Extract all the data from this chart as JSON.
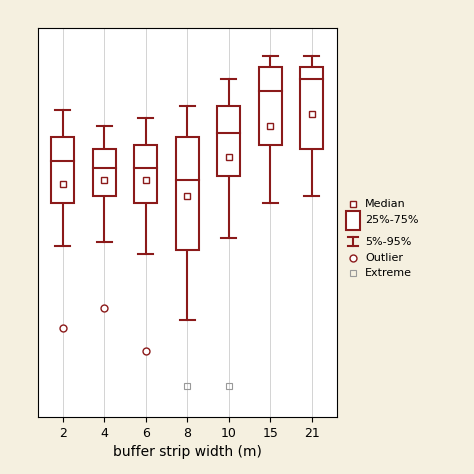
{
  "categories": [
    2,
    4,
    6,
    8,
    10,
    15,
    21
  ],
  "box_color": "#8B1A1A",
  "background_color": "#F5F0E0",
  "plot_bg_color": "#FFFFFF",
  "xlabel": "buffer strip width (m)",
  "grid_color": "#CCCCCC",
  "boxes": [
    {
      "q1": 0.55,
      "q3": 0.72,
      "median": 0.66,
      "mean": 0.6,
      "whisker_low": 0.44,
      "whisker_high": 0.79,
      "outliers": [
        0.23
      ],
      "extremes": []
    },
    {
      "q1": 0.57,
      "q3": 0.69,
      "median": 0.64,
      "mean": 0.61,
      "whisker_low": 0.45,
      "whisker_high": 0.75,
      "outliers": [
        0.28
      ],
      "extremes": []
    },
    {
      "q1": 0.55,
      "q3": 0.7,
      "median": 0.64,
      "mean": 0.61,
      "whisker_low": 0.42,
      "whisker_high": 0.77,
      "outliers": [
        0.17
      ],
      "extremes": []
    },
    {
      "q1": 0.43,
      "q3": 0.72,
      "median": 0.61,
      "mean": 0.57,
      "whisker_low": 0.25,
      "whisker_high": 0.8,
      "outliers": [],
      "extremes": [
        0.08
      ]
    },
    {
      "q1": 0.62,
      "q3": 0.8,
      "median": 0.73,
      "mean": 0.67,
      "whisker_low": 0.46,
      "whisker_high": 0.87,
      "outliers": [],
      "extremes": [
        0.08
      ]
    },
    {
      "q1": 0.7,
      "q3": 0.9,
      "median": 0.84,
      "mean": 0.75,
      "whisker_low": 0.55,
      "whisker_high": 0.93,
      "outliers": [],
      "extremes": []
    },
    {
      "q1": 0.69,
      "q3": 0.9,
      "median": 0.87,
      "mean": 0.78,
      "whisker_low": 0.57,
      "whisker_high": 0.93,
      "outliers": [],
      "extremes": []
    }
  ],
  "ylim": [
    0.0,
    1.0
  ],
  "figsize": [
    4.74,
    4.74
  ],
  "dpi": 100,
  "box_width": 0.55,
  "legend_items": [
    {
      "label": "Median",
      "type": "mean_marker"
    },
    {
      "label": "25%-75%",
      "type": "box"
    },
    {
      "label": "5%-95%",
      "type": "whisker"
    },
    {
      "label": "Outlier",
      "type": "outlier"
    },
    {
      "label": "Extreme",
      "type": "extreme"
    }
  ]
}
